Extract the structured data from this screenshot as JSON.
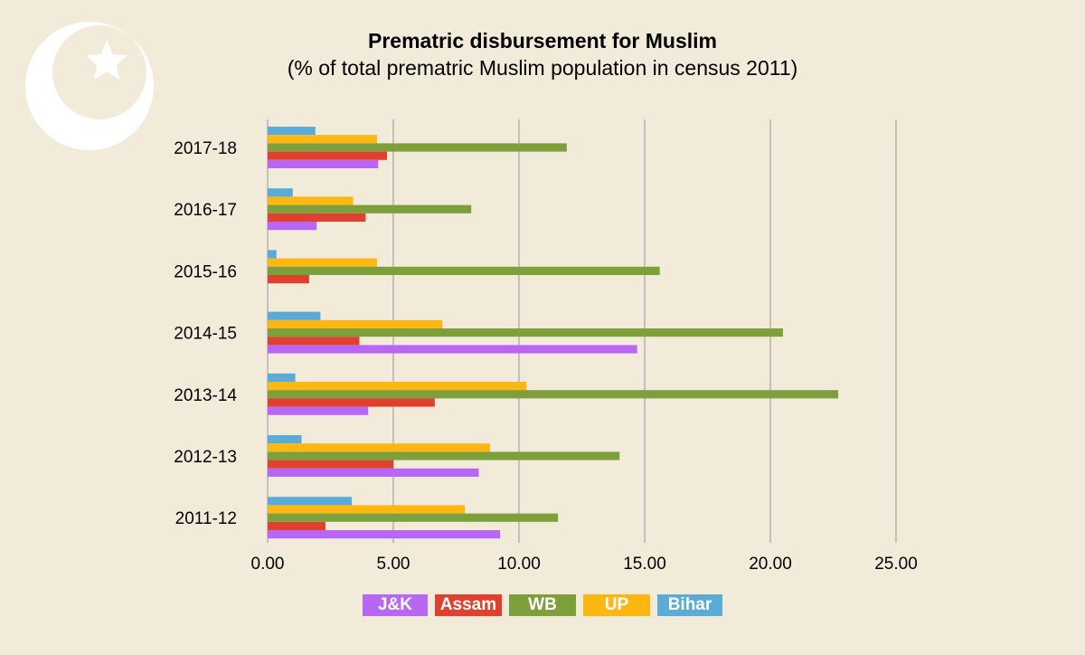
{
  "title": "Prematric disbursement for Muslim",
  "subtitle": "(% of total prematric Muslim population in census 2011)",
  "logo": {
    "icon": "crescent-star-icon",
    "color": "#ffffff"
  },
  "chart_data": {
    "type": "bar",
    "orientation": "horizontal",
    "title": "Prematric disbursement for Muslim",
    "subtitle": "(% of total prematric Muslim population in census 2011)",
    "categories": [
      "2017-18",
      "2016-17",
      "2015-16",
      "2014-15",
      "2013-14",
      "2012-13",
      "2011-12"
    ],
    "series": [
      {
        "name": "Bihar",
        "color": "#5aabd6",
        "values": [
          1.9,
          1.0,
          0.35,
          2.1,
          1.1,
          1.35,
          3.35
        ]
      },
      {
        "name": "UP",
        "color": "#fcb713",
        "values": [
          4.35,
          3.4,
          4.35,
          6.95,
          10.3,
          8.85,
          7.85
        ]
      },
      {
        "name": "WB",
        "color": "#7da03c",
        "values": [
          11.9,
          8.1,
          15.6,
          20.5,
          22.7,
          14.0,
          11.55
        ]
      },
      {
        "name": "Assam",
        "color": "#e0412f",
        "values": [
          4.75,
          3.9,
          1.65,
          3.65,
          6.65,
          5.0,
          2.3
        ]
      },
      {
        "name": "J&K",
        "color": "#b766f5",
        "values": [
          4.4,
          1.95,
          0,
          14.7,
          4.0,
          8.4,
          9.25
        ]
      }
    ],
    "legend_order": [
      "J&K",
      "Assam",
      "WB",
      "UP",
      "Bihar"
    ],
    "xlim": [
      0,
      25
    ],
    "xticks": [
      "0.00",
      "5.00",
      "10.00",
      "15.00",
      "20.00",
      "25.00"
    ],
    "grid": true,
    "gridline_color": "#aaaaaa",
    "legend_position": "bottom"
  }
}
